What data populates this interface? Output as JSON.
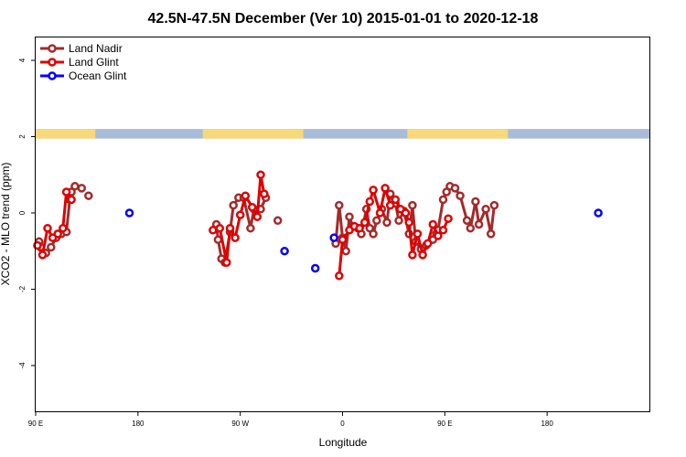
{
  "chart_data": {
    "type": "line",
    "title": "42.5N-47.5N December (Ver 10)   2015-01-01 to 2020-12-18",
    "xlabel": "Longitude",
    "ylabel": "XCO2 - MLO trend (ppm)",
    "xlim": [
      -90,
      270
    ],
    "ylim": [
      -5.2,
      4.6
    ],
    "x_ticks": [
      {
        "value": -90,
        "label": "90 E"
      },
      {
        "value": -30,
        "label": "180"
      },
      {
        "value": 30,
        "label": "90 W"
      },
      {
        "value": 90,
        "label": "0"
      },
      {
        "value": 150,
        "label": "90 E"
      },
      {
        "value": 210,
        "label": "180"
      }
    ],
    "y_ticks": [
      {
        "value": -4,
        "label": "-4"
      },
      {
        "value": -2,
        "label": "-2"
      },
      {
        "value": 0,
        "label": "0"
      },
      {
        "value": 2,
        "label": "2"
      },
      {
        "value": 4,
        "label": "4"
      }
    ],
    "land_band": {
      "y_range": [
        1.95,
        2.2
      ],
      "land_color": "#f8d878",
      "ocean_color": "#a8bcd8",
      "land_segments": [
        [
          -90,
          -55
        ],
        [
          8,
          67
        ],
        [
          128,
          187
        ]
      ]
    },
    "series": [
      {
        "name": "Land Nadir",
        "color": "#a52a2a",
        "segments": [
          {
            "x": [
              -88,
              -87,
              -84,
              -81,
              -78,
              -75,
              -72,
              -70,
              -69,
              -67,
              -63
            ],
            "y": [
              -0.75,
              -0.9,
              -1.05,
              -0.9,
              -0.65,
              -0.55,
              -0.5,
              0.35,
              0.55,
              0.7,
              0.65
            ]
          },
          {
            "x": [
              -59
            ],
            "y": [
              0.45
            ]
          },
          {
            "x": [
              16,
              17,
              19,
              21,
              24,
              26,
              29,
              32,
              36,
              38
            ],
            "y": [
              -0.3,
              -0.7,
              -1.2,
              -1.3,
              -0.5,
              0.2,
              0.4,
              0.4,
              -0.4,
              0.1
            ]
          },
          {
            "x": [
              42,
              45
            ],
            "y": [
              0.1,
              0.4
            ]
          },
          {
            "x": [
              52
            ],
            "y": [
              -0.2
            ]
          },
          {
            "x": [
              86,
              88,
              90,
              92,
              94,
              96,
              99,
              101,
              104,
              106,
              108,
              110,
              113,
              116,
              118,
              121,
              123,
              126,
              129,
              131,
              133,
              136,
              139,
              143,
              145,
              146,
              149,
              151,
              153,
              156,
              159,
              163,
              165,
              168,
              170,
              174,
              177,
              179
            ],
            "y": [
              -0.8,
              0.2,
              -0.65,
              -1.0,
              -0.1,
              -0.35,
              -0.4,
              -0.55,
              0.1,
              -0.4,
              -0.55,
              -0.2,
              0.1,
              -0.25,
              0.5,
              0.25,
              -0.2,
              0.05,
              -0.55,
              0.2,
              -0.75,
              -0.95,
              -0.85,
              -0.7,
              -0.55,
              -0.45,
              0.35,
              0.55,
              0.7,
              0.65,
              0.45,
              -0.2,
              -0.4,
              0.3,
              -0.3,
              0.1,
              -0.55,
              0.2
            ]
          }
        ]
      },
      {
        "name": "Land Glint",
        "color": "#e00000",
        "segments": [
          {
            "x": [
              -89,
              -86,
              -83,
              -80,
              -77,
              -74,
              -72,
              -69
            ],
            "y": [
              -0.85,
              -1.1,
              -0.4,
              -0.65,
              -0.55,
              -0.4,
              0.55,
              0.35
            ]
          },
          {
            "x": [
              14,
              18,
              22,
              24,
              27,
              30,
              33,
              37,
              40,
              42,
              44
            ],
            "y": [
              -0.45,
              -0.4,
              -1.3,
              -0.4,
              -0.65,
              -0.05,
              0.45,
              0.15,
              -0.1,
              1.0,
              0.5
            ]
          },
          {
            "x": [
              88,
              90,
              94,
              97,
              100,
              103,
              106,
              108,
              112,
              115,
              118,
              121,
              124,
              127,
              129,
              131,
              134,
              137,
              140,
              143,
              146,
              149,
              152
            ],
            "y": [
              -1.65,
              -0.7,
              -0.45,
              -0.35,
              -0.4,
              -0.25,
              0.3,
              0.6,
              0.0,
              0.65,
              0.2,
              0.35,
              0.1,
              0.0,
              -0.25,
              -1.1,
              -0.55,
              -1.1,
              -0.8,
              -0.3,
              -0.6,
              -0.45,
              -0.15
            ]
          }
        ]
      },
      {
        "name": "Ocean Glint",
        "color": "#0000ff",
        "segments": [
          {
            "x": [
              -35
            ],
            "y": [
              0.0
            ]
          },
          {
            "x": [
              56
            ],
            "y": [
              -1.0
            ]
          },
          {
            "x": [
              74
            ],
            "y": [
              -1.45
            ]
          },
          {
            "x": [
              85
            ],
            "y": [
              -0.65
            ]
          },
          {
            "x": [
              240
            ],
            "y": [
              0.0
            ]
          }
        ]
      }
    ],
    "legend": {
      "position": "top-left",
      "entries": [
        "Land Nadir",
        "Land Glint",
        "Ocean Glint"
      ]
    }
  }
}
